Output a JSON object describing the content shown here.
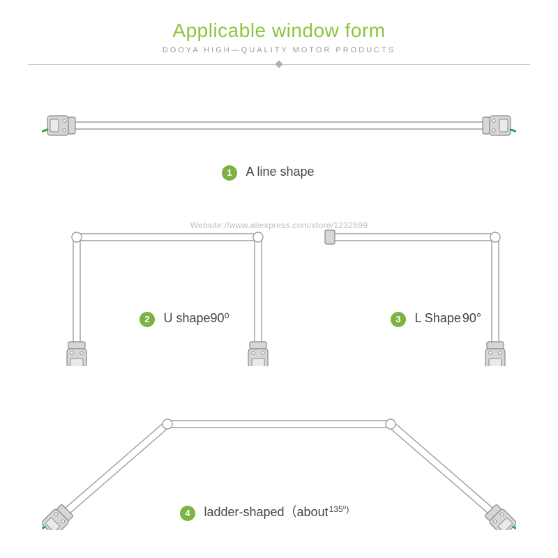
{
  "header": {
    "title": "Applicable window form",
    "subtitle": "DOOYA HIGH—QUALITY MOTOR PRODUCTS"
  },
  "colors": {
    "accent": "#8cc63f",
    "accent_dark": "#7cb342",
    "cable": "#2fa84f",
    "track_outline": "#9e9e9e",
    "track_fill": "#ffffff",
    "motor_fill": "#d6d6d6",
    "motor_stroke": "#8a8a8a",
    "text": "#444444",
    "subtitle_text": "#999999",
    "divider": "#cccccc",
    "watermark": "#bdbdbd"
  },
  "watermark": "Website://www.aliexpress.com/store/1232699",
  "shapes": [
    {
      "num": "1",
      "label": "A line shape",
      "angle": "",
      "type": "line"
    },
    {
      "num": "2",
      "label": "U shape ",
      "angle": "90⁰",
      "type": "u"
    },
    {
      "num": "3",
      "label": "L Shape",
      "angle": "90°",
      "type": "l"
    },
    {
      "num": "4",
      "label": "ladder-shaped（about",
      "angle": "135⁰)",
      "type": "ladder"
    }
  ],
  "geometry": {
    "track_gap": 10,
    "stroke_width": 1.4,
    "cable_width": 3
  }
}
